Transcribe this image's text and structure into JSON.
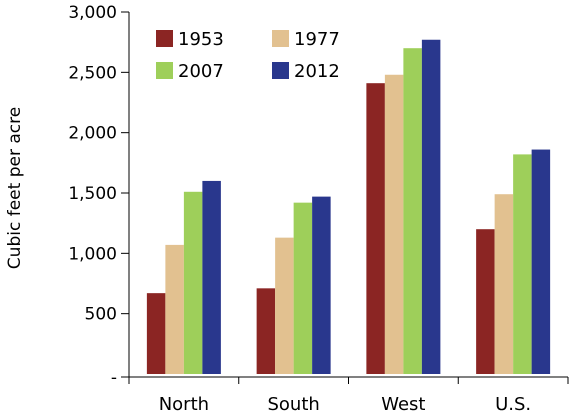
{
  "chart_data": {
    "type": "bar",
    "title": "",
    "xlabel": "",
    "ylabel": "Cubic feet per acre",
    "categories": [
      "North",
      "South",
      "West",
      "U.S."
    ],
    "series": [
      {
        "name": "1953",
        "color": "#8B2523",
        "values": [
          670,
          710,
          2410,
          1200
        ]
      },
      {
        "name": "1977",
        "color": "#E2C190",
        "values": [
          1070,
          1130,
          2480,
          1490
        ]
      },
      {
        "name": "2007",
        "color": "#9ECF5A",
        "values": [
          1510,
          1420,
          2700,
          1820
        ]
      },
      {
        "name": "2012",
        "color": "#29378D",
        "values": [
          1600,
          1470,
          2770,
          1860
        ]
      }
    ],
    "ylim": [
      0,
      3000
    ],
    "yticks": [
      0,
      500,
      1000,
      1500,
      2000,
      2500,
      3000
    ],
    "ytick_labels": [
      "-",
      "500",
      "1,000",
      "1,500",
      "2,000",
      "2,500",
      "3,000"
    ],
    "grid": false,
    "legend": "top-left, inside plot, two columns"
  }
}
